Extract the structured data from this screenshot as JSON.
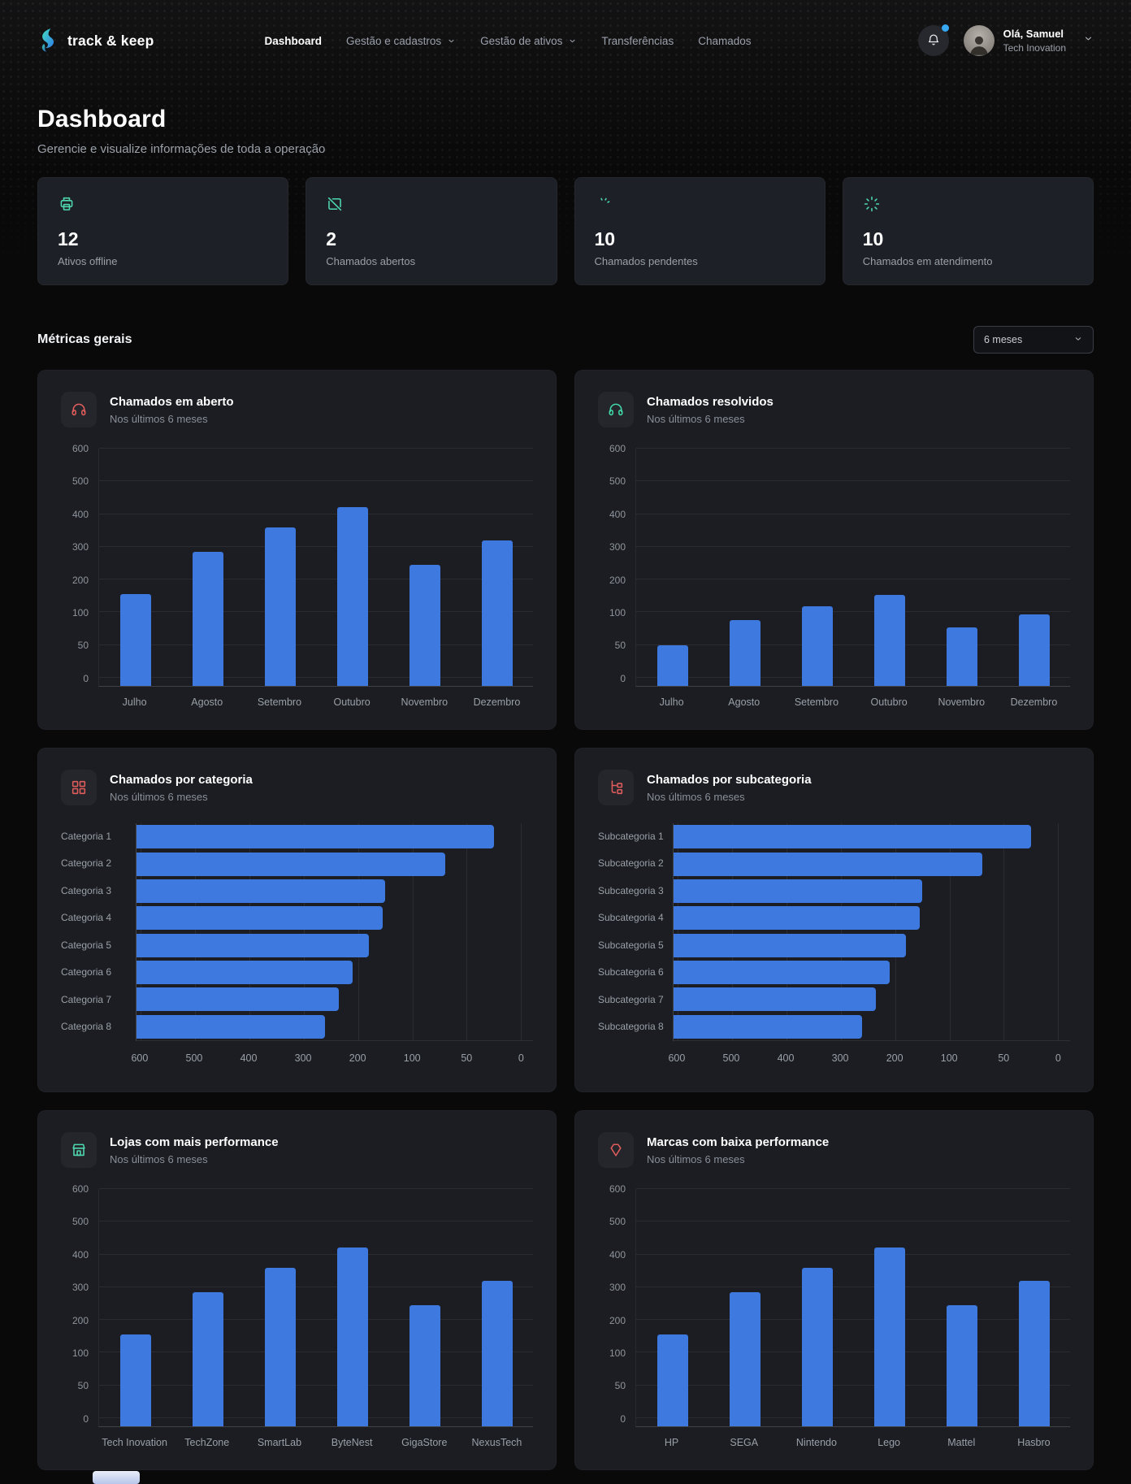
{
  "brand": {
    "name": "track & keep"
  },
  "nav": {
    "items": [
      {
        "label": "Dashboard",
        "active": true,
        "has_dropdown": false
      },
      {
        "label": "Gestão e cadastros",
        "active": false,
        "has_dropdown": true
      },
      {
        "label": "Gestão de ativos",
        "active": false,
        "has_dropdown": true
      },
      {
        "label": "Transferências",
        "active": false,
        "has_dropdown": false
      },
      {
        "label": "Chamados",
        "active": false,
        "has_dropdown": false
      }
    ]
  },
  "notifications": {
    "has_unread": true
  },
  "user": {
    "greeting": "Olá, Samuel",
    "org": "Tech Inovation"
  },
  "page": {
    "title": "Dashboard",
    "subtitle": "Gerencie e visualize informações de toda a operação"
  },
  "stats": [
    {
      "icon": "printer-icon",
      "value": "12",
      "label": "Ativos offline"
    },
    {
      "icon": "device-off-icon",
      "value": "2",
      "label": "Chamados abertos"
    },
    {
      "icon": "spinner-partial-icon",
      "value": "10",
      "label": "Chamados pendentes"
    },
    {
      "icon": "spinner-icon",
      "value": "10",
      "label": "Chamados em atendimento"
    }
  ],
  "metrics": {
    "title": "Métricas gerais",
    "period_select": {
      "value": "6 meses"
    }
  },
  "colors": {
    "bar_blue": "#3d79de",
    "accent_teal": "#4fd8b0",
    "danger_red": "#e05c5c",
    "success_green": "#42d6a4"
  },
  "chart_data": [
    {
      "id": "chamados-em-aberto",
      "type": "bar",
      "orientation": "vertical",
      "icon": "headset-icon",
      "icon_color": "#e05c5c",
      "title": "Chamados em aberto",
      "subtitle": "Nos últimos 6 meses",
      "categories": [
        "Julho",
        "Agosto",
        "Setembro",
        "Outubro",
        "Novembro",
        "Dezembro"
      ],
      "values": [
        155,
        285,
        360,
        420,
        245,
        320
      ],
      "y_ticks": [
        0,
        50,
        100,
        200,
        300,
        400,
        500,
        600
      ],
      "grid": true,
      "legend": false
    },
    {
      "id": "chamados-resolvidos",
      "type": "bar",
      "orientation": "vertical",
      "icon": "headset-icon",
      "icon_color": "#42d6a4",
      "title": "Chamados resolvidos",
      "subtitle": "Nos últimos 6 meses",
      "categories": [
        "Julho",
        "Agosto",
        "Setembro",
        "Outubro",
        "Novembro",
        "Dezembro"
      ],
      "values": [
        50,
        88,
        118,
        152,
        77,
        97
      ],
      "y_ticks": [
        0,
        50,
        100,
        200,
        300,
        400,
        500,
        600
      ],
      "grid": true,
      "legend": false
    },
    {
      "id": "chamados-por-categoria",
      "type": "bar",
      "orientation": "horizontal",
      "icon": "grid-icon",
      "icon_color": "#e05c5c",
      "title": "Chamados por categoria",
      "subtitle": "Nos últimos 6 meses",
      "categories": [
        "Categoria 1",
        "Categoria 2",
        "Categoria 3",
        "Categoria 4",
        "Categoria 5",
        "Categoria 6",
        "Categoria 7",
        "Categoria 8"
      ],
      "values": [
        25,
        70,
        150,
        155,
        180,
        210,
        235,
        260
      ],
      "x_ticks": [
        600,
        500,
        400,
        300,
        200,
        100,
        50,
        0
      ],
      "axis_reversed": true,
      "grid": true,
      "legend": false
    },
    {
      "id": "chamados-por-subcategoria",
      "type": "bar",
      "orientation": "horizontal",
      "icon": "tree-icon",
      "icon_color": "#e05c5c",
      "title": "Chamados por subcategoria",
      "subtitle": "Nos últimos 6 meses",
      "categories": [
        "Subcategoria 1",
        "Subcategoria 2",
        "Subcategoria 3",
        "Subcategoria 4",
        "Subcategoria 5",
        "Subcategoria 6",
        "Subcategoria 7",
        "Subcategoria 8"
      ],
      "values": [
        25,
        70,
        150,
        155,
        180,
        210,
        235,
        260
      ],
      "x_ticks": [
        600,
        500,
        400,
        300,
        200,
        100,
        50,
        0
      ],
      "axis_reversed": true,
      "grid": true,
      "legend": false
    },
    {
      "id": "lojas-com-mais-performance",
      "type": "bar",
      "orientation": "vertical",
      "icon": "store-icon",
      "icon_color": "#4fd8b0",
      "title": "Lojas com mais performance",
      "subtitle": "Nos últimos 6 meses",
      "categories": [
        "Tech Inovation",
        "TechZone",
        "SmartLab",
        "ByteNest",
        "GigaStore",
        "NexusTech"
      ],
      "values": [
        155,
        285,
        360,
        420,
        245,
        320
      ],
      "y_ticks": [
        0,
        50,
        100,
        200,
        300,
        400,
        500,
        600
      ],
      "grid": true,
      "legend": false
    },
    {
      "id": "marcas-com-baixa-performance",
      "type": "bar",
      "orientation": "vertical",
      "icon": "gem-icon",
      "icon_color": "#e05c5c",
      "title": "Marcas com baixa performance",
      "subtitle": "Nos últimos 6 meses",
      "categories": [
        "HP",
        "SEGA",
        "Nintendo",
        "Lego",
        "Mattel",
        "Hasbro"
      ],
      "values": [
        155,
        285,
        360,
        420,
        245,
        320
      ],
      "y_ticks": [
        0,
        50,
        100,
        200,
        300,
        400,
        500,
        600
      ],
      "grid": true,
      "legend": false
    }
  ]
}
